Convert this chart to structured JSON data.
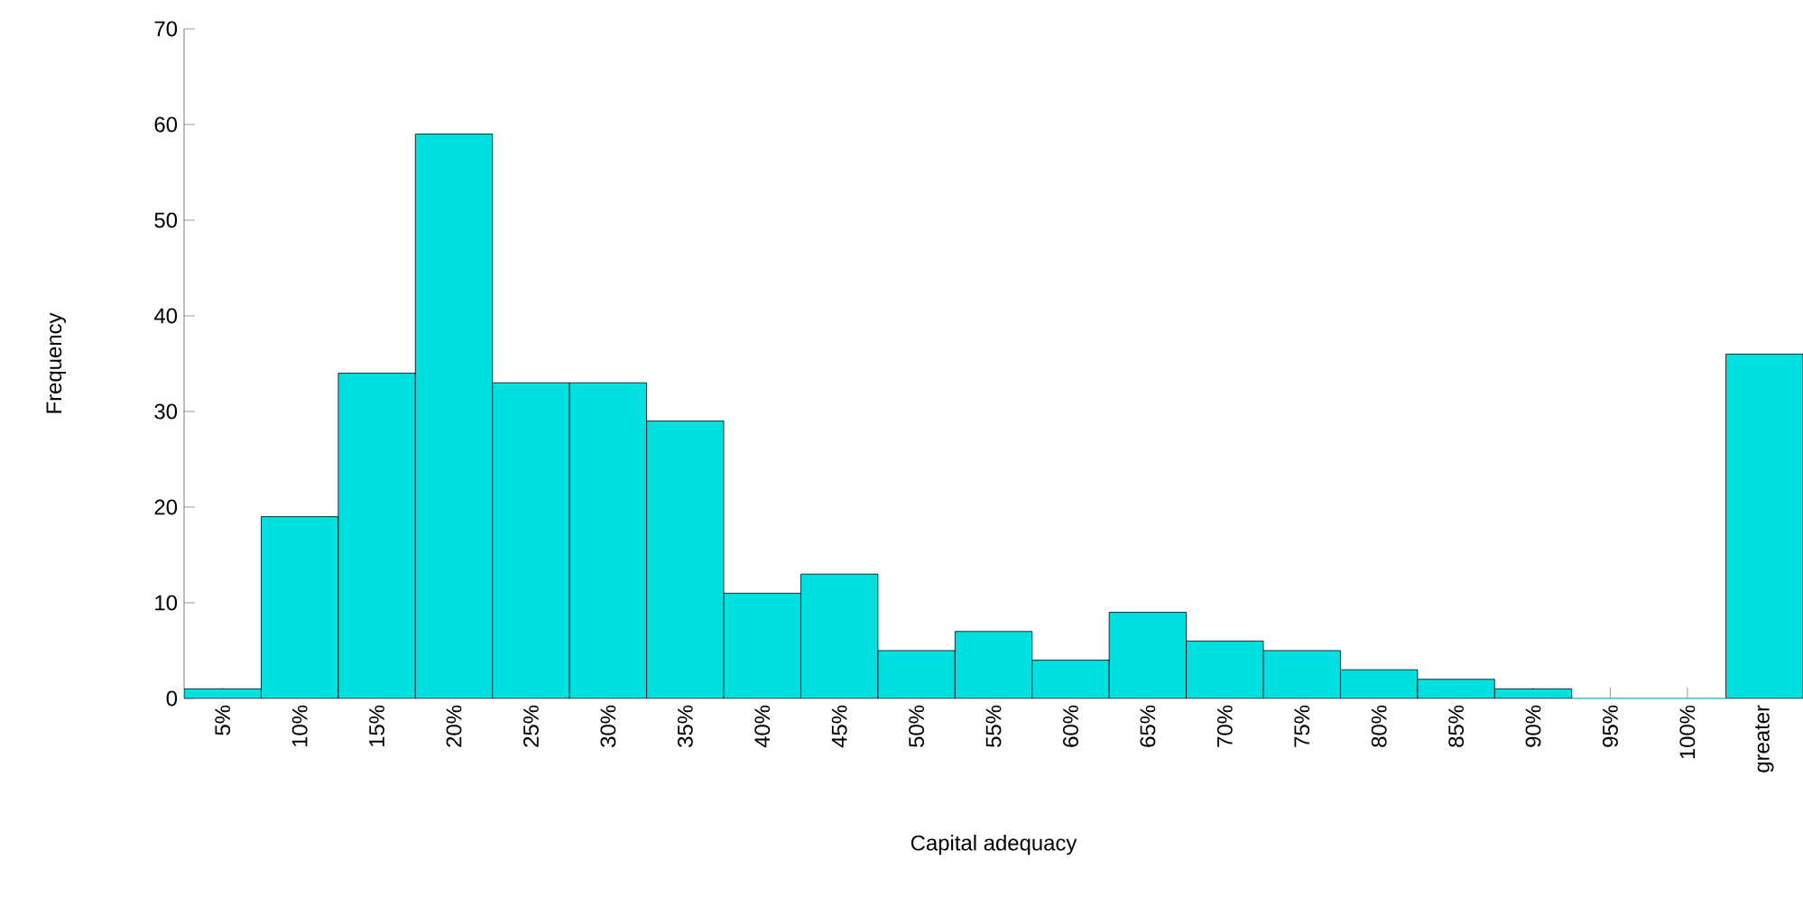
{
  "chart_data": {
    "type": "bar",
    "xlabel": "Capital adequacy",
    "ylabel": "Frequency",
    "categories": [
      "5%",
      "10%",
      "15%",
      "20%",
      "25%",
      "30%",
      "35%",
      "40%",
      "45%",
      "50%",
      "55%",
      "60%",
      "65%",
      "70%",
      "75%",
      "80%",
      "85%",
      "90%",
      "95%",
      "100%",
      "greater"
    ],
    "values": [
      1,
      19,
      34,
      59,
      33,
      33,
      29,
      11,
      13,
      5,
      7,
      4,
      9,
      6,
      5,
      3,
      2,
      1,
      0,
      0,
      36
    ],
    "color": "#00e0e0",
    "ylim": [
      0,
      70
    ],
    "yticks": [
      0,
      10,
      20,
      30,
      40,
      50,
      60,
      70
    ],
    "grid": false
  }
}
